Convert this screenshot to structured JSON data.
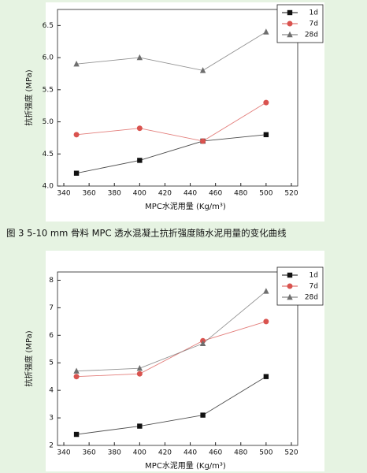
{
  "caption": "图 3 5-10 mm 骨料 MPC 透水混凝土抗折强度随水泥用量的变化曲线",
  "chart_data": [
    {
      "type": "line",
      "x_label": "MPC水泥用量 (Kg/m³)",
      "y_label": "抗折强度 (MPa)",
      "x": [
        350,
        400,
        450,
        500
      ],
      "series": [
        {
          "name": "1d",
          "color": "#111111",
          "marker": "square",
          "values": [
            4.2,
            4.4,
            4.7,
            4.8
          ]
        },
        {
          "name": "7d",
          "color": "#d9534f",
          "marker": "circle",
          "values": [
            4.8,
            4.9,
            4.7,
            5.3
          ]
        },
        {
          "name": "28d",
          "color": "#6e6e6e",
          "marker": "triangle",
          "values": [
            5.9,
            6.0,
            5.8,
            6.4
          ]
        }
      ],
      "xlim": [
        335,
        525
      ],
      "xticks": [
        340,
        360,
        380,
        400,
        420,
        440,
        460,
        480,
        500,
        520
      ],
      "ylim": [
        4.0,
        6.75
      ],
      "yticks": [
        {
          "value": 4.0,
          "label": "4.0"
        },
        {
          "value": 4.5,
          "label": "4.5"
        },
        {
          "value": 5.0,
          "label": "5.0"
        },
        {
          "value": 5.5,
          "label": "5.5"
        },
        {
          "value": 6.0,
          "label": "6.0"
        },
        {
          "value": 6.5,
          "label": "6.5"
        }
      ],
      "legend": "upper right"
    },
    {
      "type": "line",
      "x_label": "MPC水泥用量 (Kg/m³)",
      "y_label": "抗折强度 (MPa)",
      "x": [
        350,
        400,
        450,
        500
      ],
      "series": [
        {
          "name": "1d",
          "color": "#111111",
          "marker": "square",
          "values": [
            2.4,
            2.7,
            3.1,
            4.5
          ]
        },
        {
          "name": "7d",
          "color": "#d9534f",
          "marker": "circle",
          "values": [
            4.5,
            4.6,
            5.8,
            6.5
          ]
        },
        {
          "name": "28d",
          "color": "#6e6e6e",
          "marker": "triangle",
          "values": [
            4.7,
            4.8,
            5.7,
            7.6
          ]
        }
      ],
      "xlim": [
        335,
        525
      ],
      "xticks": [
        340,
        360,
        380,
        400,
        420,
        440,
        460,
        480,
        500,
        520
      ],
      "ylim": [
        2,
        8.3
      ],
      "yticks": [
        2,
        3,
        4,
        5,
        6,
        7,
        8
      ],
      "legend": "upper right"
    }
  ]
}
